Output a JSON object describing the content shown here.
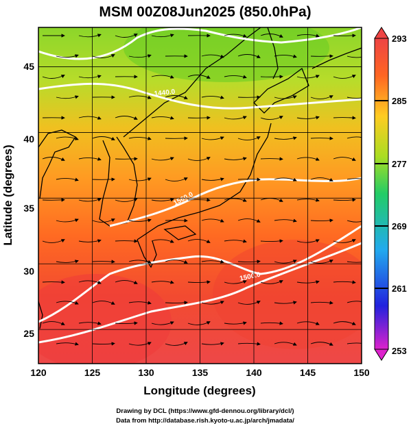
{
  "chart_data": {
    "type": "heatmap",
    "title": "MSM 00Z08Jun2025 (850.0hPa)",
    "xlabel": "Longitude (degrees)",
    "ylabel": "Latitude  (degrees)",
    "xlim": [
      120,
      150
    ],
    "ylim": [
      22.4,
      48
    ],
    "x_ticks": [
      "120",
      "125",
      "130",
      "135",
      "140",
      "145",
      "150"
    ],
    "y_ticks": [
      "25",
      "30",
      "35",
      "40",
      "45"
    ],
    "grid": true,
    "colorbar": {
      "range": [
        253,
        293
      ],
      "ticks": [
        "293",
        "285",
        "277",
        "269",
        "261",
        "253"
      ],
      "colors": [
        "#dd22cc",
        "#2222dd",
        "#22aaee",
        "#22cc66",
        "#aadd22",
        "#ffcc22",
        "#ff6622",
        "#ee4444"
      ]
    },
    "contour_labels": [
      "1440.0",
      "1560.0",
      "1500.0"
    ],
    "temperature_field_K": [
      {
        "region": "north of 44N",
        "value": 279
      },
      {
        "region": "38-44N",
        "value": 284
      },
      {
        "region": "32-38N",
        "value": 288
      },
      {
        "region": "south of 30N",
        "value": 291
      }
    ]
  },
  "credits": {
    "line1": "Drawing by DCL (https://www.gfd-dennou.org/library/dcl/)",
    "line2": "Data from http://database.rish.kyoto-u.ac.jp/arch/jmadata/"
  }
}
